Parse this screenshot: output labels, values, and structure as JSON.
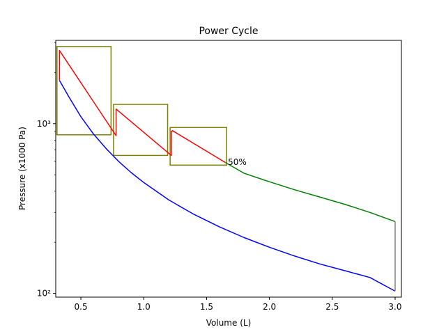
{
  "chart_data": {
    "type": "line",
    "title": "Power Cycle",
    "xlabel": "Volume (L)",
    "ylabel": "Pressure (x1000 Pa)",
    "xlim": [
      0.3,
      3.05
    ],
    "ylim": [
      95,
      3100
    ],
    "yscale": "log",
    "grid": false,
    "x_ticks": [
      0.5,
      1.0,
      1.5,
      2.0,
      2.5,
      3.0
    ],
    "x_tick_labels": [
      "0.5",
      "1.0",
      "1.5",
      "2.0",
      "2.5",
      "3.0"
    ],
    "y_ticks": [
      100,
      1000
    ],
    "y_tick_labels": [
      "10²",
      "10³"
    ],
    "series": [
      {
        "color": "#0000ff",
        "x": [
          0.33,
          0.4,
          0.5,
          0.6,
          0.7,
          0.8,
          0.9,
          1.0,
          1.2,
          1.4,
          1.6,
          1.8,
          2.0,
          2.2,
          2.4,
          2.6,
          2.8,
          3.0
        ],
        "y": [
          1800,
          1460,
          1100,
          870,
          715,
          600,
          515,
          450,
          355,
          292,
          247,
          213,
          187,
          166,
          149,
          136,
          124,
          103
        ]
      },
      {
        "color": "#ff0000",
        "x": [
          0.33,
          0.33,
          0.78,
          0.78,
          0.78,
          1.22,
          1.22,
          1.23,
          1.65
        ],
        "y": [
          1800,
          2700,
          850,
          1150,
          1220,
          650,
          900,
          910,
          590
        ]
      },
      {
        "color": "#008000",
        "x": [
          1.65,
          1.8,
          2.0,
          2.2,
          2.4,
          2.6,
          2.8,
          3.0
        ],
        "y": [
          590,
          510,
          455,
          408,
          370,
          335,
          300,
          265
        ]
      },
      {
        "color": "#808080",
        "x": [
          3.0,
          3.0
        ],
        "y": [
          265,
          103
        ]
      }
    ],
    "boxes": [
      {
        "color": "#808000",
        "x": [
          0.31,
          0.74
        ],
        "y": [
          860,
          2850
        ]
      },
      {
        "color": "#808000",
        "x": [
          0.76,
          1.19
        ],
        "y": [
          650,
          1300
        ]
      },
      {
        "color": "#808000",
        "x": [
          1.21,
          1.66
        ],
        "y": [
          570,
          950
        ]
      }
    ],
    "annotations": [
      {
        "text": "50%",
        "x": 1.67,
        "y": 595
      }
    ]
  }
}
